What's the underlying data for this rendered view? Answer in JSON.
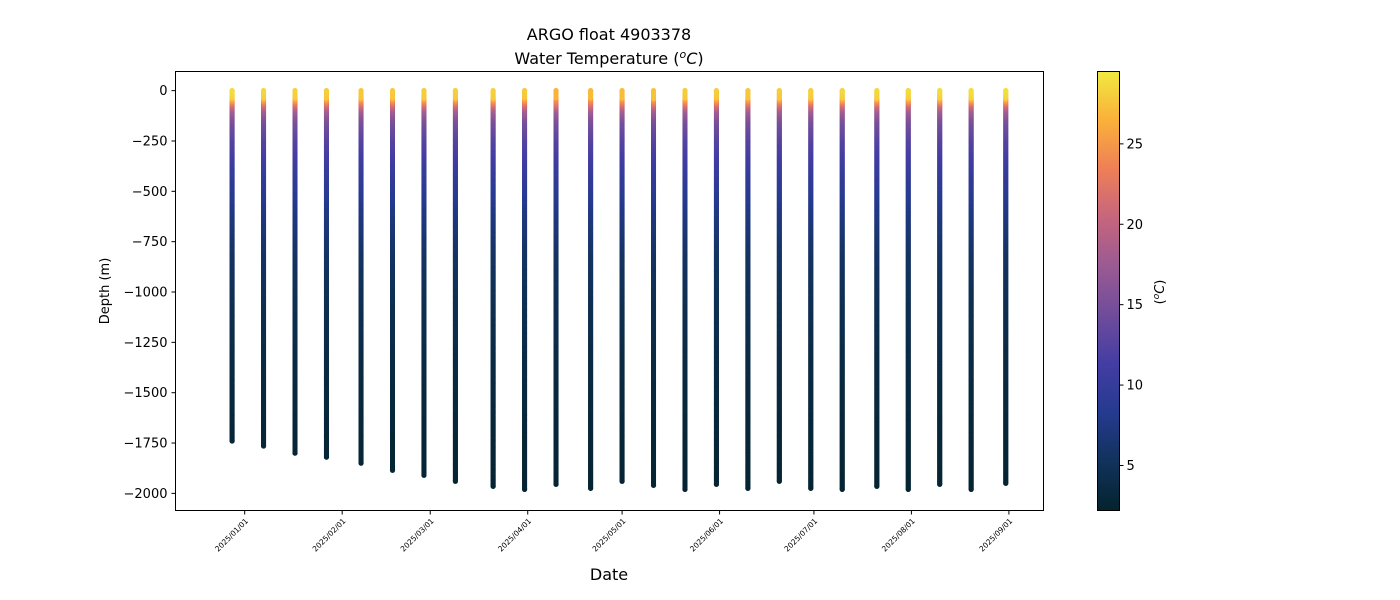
{
  "chart_data": {
    "type": "scatter",
    "title": "ARGO float 4903378",
    "subtitle_prefix": "Water Temperature (",
    "subtitle_unit_base": "o",
    "subtitle_unit_sup": "C",
    "subtitle_suffix": ")",
    "xlabel": "Date",
    "ylabel": "Depth (m)",
    "colorbar_label_prefix": "(",
    "colorbar_label_sup": "o",
    "colorbar_label_unit": "C",
    "colorbar_label_suffix": ")",
    "x_axis": "date",
    "xlim": [
      "2024-12-10",
      "2025-09-12"
    ],
    "ylim": [
      -2085,
      95
    ],
    "colorbar_range": [
      2.2,
      29.5
    ],
    "grid": false,
    "colormap": "thermal",
    "colormap_stops": [
      "#04232e",
      "#11325b",
      "#253a8f",
      "#433da3",
      "#6f4c9b",
      "#9a5a93",
      "#c6657d",
      "#ee7f57",
      "#fbb03a",
      "#f0e940"
    ],
    "x_tick_labels": [
      "2025/01/01",
      "2025/02/01",
      "2025/03/01",
      "2025/04/01",
      "2025/05/01",
      "2025/06/01",
      "2025/07/01",
      "2025/08/01",
      "2025/09/01"
    ],
    "x_tick_dates": [
      "2025-01-01",
      "2025-02-01",
      "2025-03-01",
      "2025-04-01",
      "2025-05-01",
      "2025-06-01",
      "2025-07-01",
      "2025-08-01",
      "2025-09-01"
    ],
    "y_ticks": [
      0,
      -250,
      -500,
      -750,
      -1000,
      -1250,
      -1500,
      -1750,
      -2000
    ],
    "y_tick_labels": [
      "0",
      "−250",
      "−500",
      "−750",
      "−1000",
      "−1250",
      "−1500",
      "−1750",
      "−2000"
    ],
    "colorbar_ticks": [
      5,
      10,
      15,
      20,
      25
    ],
    "colorbar_tick_labels": [
      "5",
      "10",
      "15",
      "20",
      "25"
    ],
    "profiles": [
      {
        "date": "2024-12-28",
        "max_depth": -1740,
        "surface_temp": 28.8
      },
      {
        "date": "2025-01-07",
        "max_depth": -1765,
        "surface_temp": 28.5
      },
      {
        "date": "2025-01-17",
        "max_depth": -1800,
        "surface_temp": 28.2
      },
      {
        "date": "2025-01-27",
        "max_depth": -1820,
        "surface_temp": 28.0
      },
      {
        "date": "2025-02-07",
        "max_depth": -1850,
        "surface_temp": 27.8
      },
      {
        "date": "2025-02-17",
        "max_depth": -1885,
        "surface_temp": 27.9
      },
      {
        "date": "2025-02-27",
        "max_depth": -1910,
        "surface_temp": 28.0
      },
      {
        "date": "2025-03-09",
        "max_depth": -1940,
        "surface_temp": 28.1
      },
      {
        "date": "2025-03-21",
        "max_depth": -1965,
        "surface_temp": 28.2
      },
      {
        "date": "2025-03-31",
        "max_depth": -1980,
        "surface_temp": 27.9
      },
      {
        "date": "2025-04-10",
        "max_depth": -1955,
        "surface_temp": 26.5
      },
      {
        "date": "2025-04-21",
        "max_depth": -1975,
        "surface_temp": 27.0
      },
      {
        "date": "2025-05-01",
        "max_depth": -1940,
        "surface_temp": 27.2
      },
      {
        "date": "2025-05-11",
        "max_depth": -1960,
        "surface_temp": 27.5
      },
      {
        "date": "2025-05-21",
        "max_depth": -1980,
        "surface_temp": 28.0
      },
      {
        "date": "2025-05-31",
        "max_depth": -1955,
        "surface_temp": 28.0
      },
      {
        "date": "2025-06-10",
        "max_depth": -1975,
        "surface_temp": 27.8
      },
      {
        "date": "2025-06-20",
        "max_depth": -1940,
        "surface_temp": 28.0
      },
      {
        "date": "2025-06-30",
        "max_depth": -1975,
        "surface_temp": 28.2
      },
      {
        "date": "2025-07-10",
        "max_depth": -1980,
        "surface_temp": 28.5
      },
      {
        "date": "2025-07-21",
        "max_depth": -1965,
        "surface_temp": 28.6
      },
      {
        "date": "2025-07-31",
        "max_depth": -1980,
        "surface_temp": 28.7
      },
      {
        "date": "2025-08-10",
        "max_depth": -1955,
        "surface_temp": 28.8
      },
      {
        "date": "2025-08-20",
        "max_depth": -1980,
        "surface_temp": 28.9
      },
      {
        "date": "2025-08-31",
        "max_depth": -1950,
        "surface_temp": 29.0
      }
    ]
  }
}
